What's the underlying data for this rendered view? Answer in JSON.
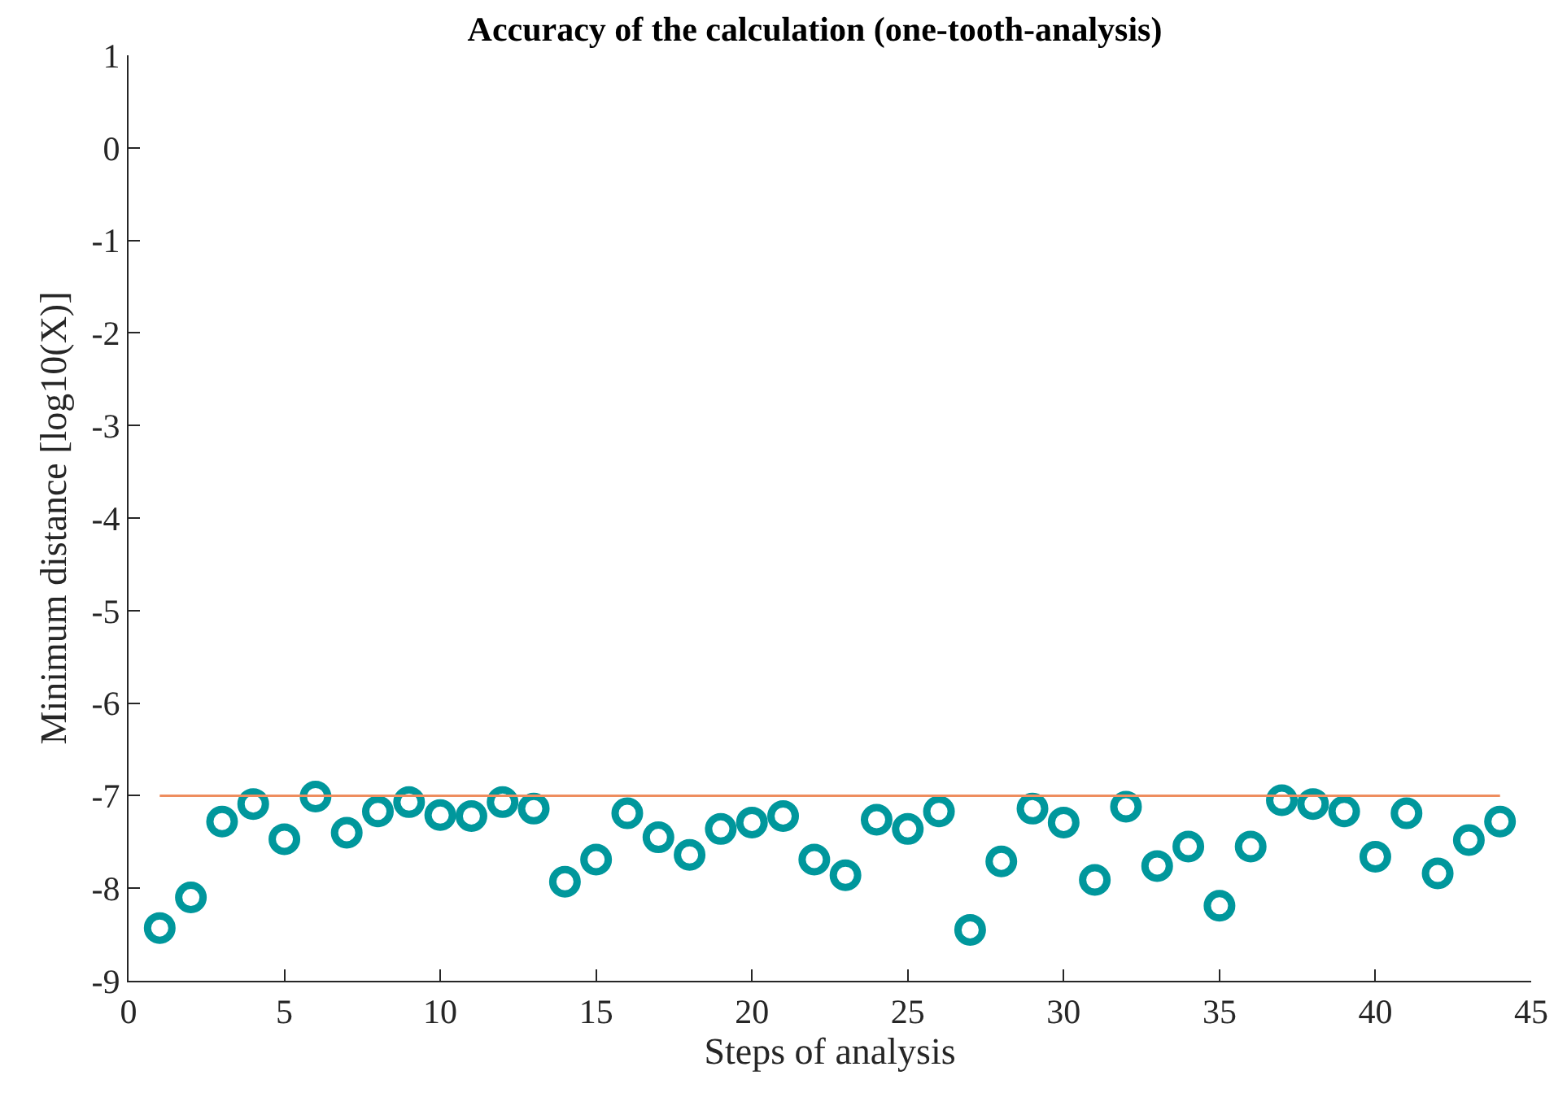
{
  "chart_data": {
    "type": "scatter",
    "title": "Accuracy of the calculation (one-tooth-analysis)",
    "xlabel": "Steps of analysis",
    "ylabel": "Minimum distance [log10(X)]",
    "xlim": [
      0,
      45
    ],
    "xticks": [
      0,
      5,
      10,
      15,
      20,
      25,
      30,
      35,
      40,
      45
    ],
    "ylim": [
      -9,
      1
    ],
    "yticks": [
      -9,
      -8,
      -7,
      -6,
      -5,
      -4,
      -3,
      -2,
      -1,
      0,
      1
    ],
    "marker": "circle",
    "series": [
      {
        "color": "#00979c",
        "x": [
          1,
          2,
          3,
          4,
          5,
          6,
          7,
          8,
          9,
          10,
          11,
          12,
          13,
          14,
          15,
          16,
          17,
          18,
          19,
          20,
          21,
          22,
          23,
          24,
          25,
          26,
          27,
          28,
          29,
          30,
          31,
          32,
          33,
          34,
          35,
          36,
          37,
          38,
          39,
          40,
          41,
          42,
          43,
          44
        ],
        "values": [
          -8.43,
          -8.1,
          -7.28,
          -7.09,
          -7.47,
          -7.01,
          -7.4,
          -7.17,
          -7.07,
          -7.21,
          -7.22,
          -7.07,
          -7.14,
          -7.93,
          -7.69,
          -7.19,
          -7.45,
          -7.64,
          -7.36,
          -7.29,
          -7.22,
          -7.69,
          -7.86,
          -7.26,
          -7.36,
          -7.17,
          -8.45,
          -7.71,
          -7.14,
          -7.29,
          -7.91,
          -7.12,
          -7.76,
          -7.55,
          -8.19,
          -7.55,
          -7.05,
          -7.09,
          -7.17,
          -7.66,
          -7.19,
          -7.84,
          -7.48,
          -7.28
        ]
      },
      {
        "type": "line",
        "color": "#ee8d5e",
        "x": [
          1,
          44
        ],
        "values": [
          -7,
          -7
        ],
        "marker": "none",
        "line_style": "solid"
      }
    ]
  }
}
